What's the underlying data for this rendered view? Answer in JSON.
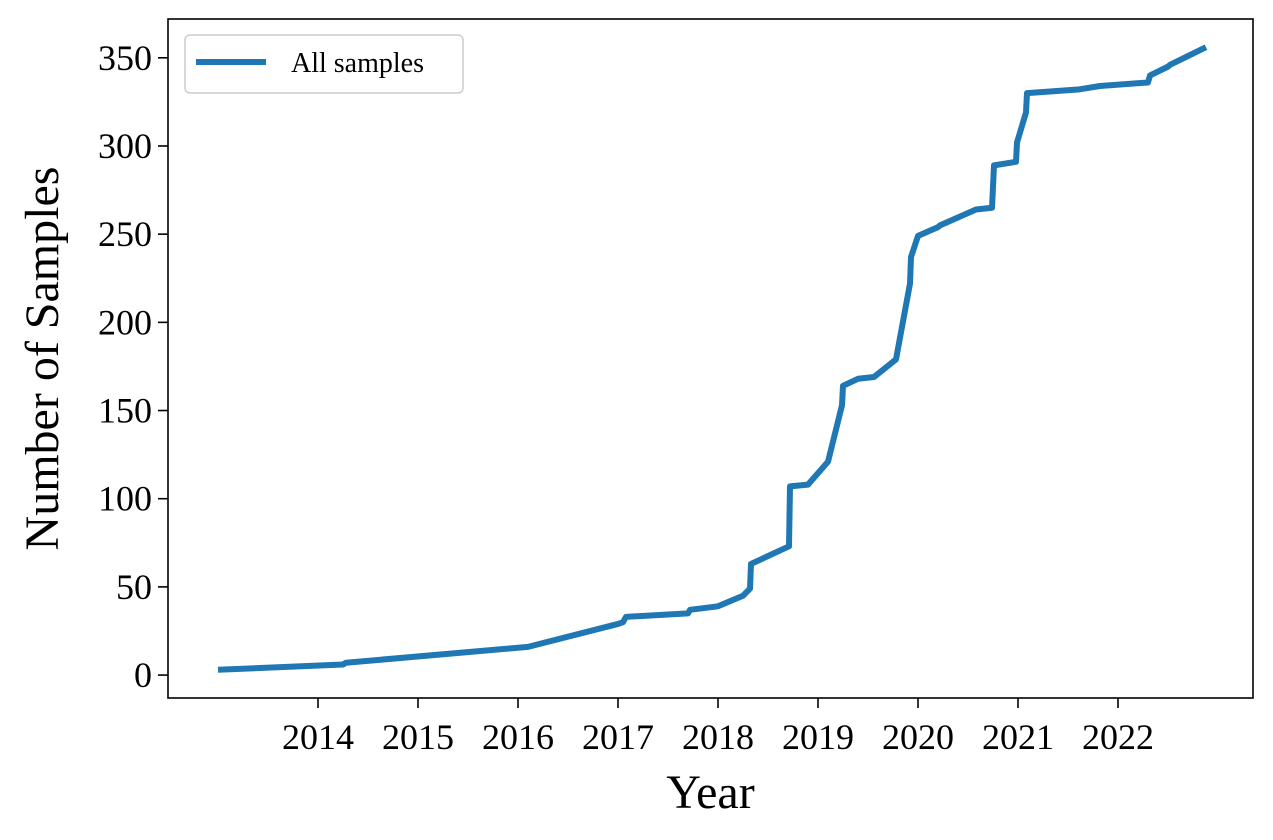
{
  "chart_data": {
    "type": "line",
    "title": "",
    "xlabel": "Year",
    "ylabel": "Number of Samples",
    "xlim": [
      2012.5,
      2023.35
    ],
    "ylim": [
      -13,
      372
    ],
    "x_ticks": [
      2014,
      2015,
      2016,
      2017,
      2018,
      2019,
      2020,
      2021,
      2022
    ],
    "x_tick_labels": [
      "2014",
      "2015",
      "2016",
      "2017",
      "2018",
      "2019",
      "2020",
      "2021",
      "2022"
    ],
    "y_ticks": [
      0,
      50,
      100,
      150,
      200,
      250,
      300,
      350
    ],
    "y_tick_labels": [
      "0",
      "50",
      "100",
      "150",
      "200",
      "250",
      "300",
      "350"
    ],
    "grid": false,
    "legend": {
      "position": "top-left"
    },
    "colors": {
      "series": "#1f77b4",
      "axes": "#000000"
    },
    "series": [
      {
        "name": "All samples",
        "x": [
          2013.0,
          2014.25,
          2014.28,
          2016.1,
          2017.0,
          2017.05,
          2017.08,
          2017.7,
          2017.72,
          2018.0,
          2018.25,
          2018.32,
          2018.33,
          2018.71,
          2018.72,
          2018.9,
          2019.1,
          2019.24,
          2019.25,
          2019.4,
          2019.56,
          2019.78,
          2019.92,
          2019.93,
          2020.0,
          2020.2,
          2020.22,
          2020.58,
          2020.74,
          2020.76,
          2020.98,
          2020.99,
          2021.08,
          2021.09,
          2021.6,
          2021.82,
          2022.3,
          2022.32,
          2022.5,
          2022.52,
          2022.88
        ],
        "y": [
          3,
          6,
          7,
          16,
          29,
          30,
          33,
          35,
          37,
          39,
          45,
          49,
          63,
          73,
          107,
          108,
          121,
          153,
          164,
          168,
          169,
          179,
          222,
          237,
          249,
          254,
          255,
          264,
          265,
          289,
          291,
          302,
          319,
          330,
          332,
          334,
          336,
          340,
          345,
          346,
          356
        ]
      }
    ]
  }
}
